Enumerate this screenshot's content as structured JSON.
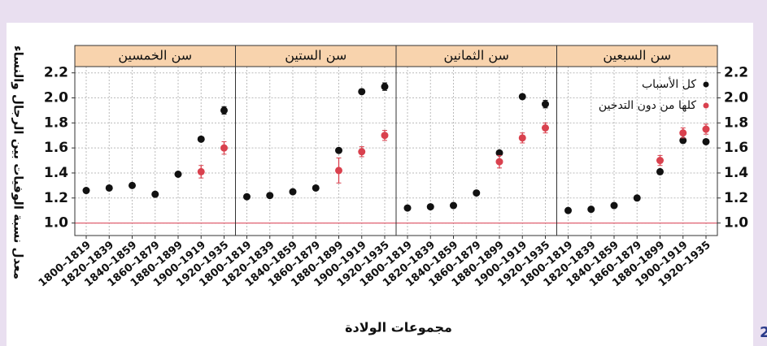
{
  "chart_data": {
    "type": "scatter",
    "ylabel": "معدل نسبة الوفيات بين الرجال والنساء",
    "xlabel": "مجموعات الولادة",
    "page_number": "2",
    "categories": [
      "1800–1819",
      "1820–1839",
      "1840–1859",
      "1860–1879",
      "1880–1899",
      "1900–1919",
      "1920–1935"
    ],
    "ylim": [
      0.9,
      2.25
    ],
    "yticks": [
      {
        "value": 1,
        "label": "1.0"
      },
      1.2,
      1.4,
      1.6,
      1.8,
      {
        "value": 2,
        "label": "2.0"
      },
      2.2
    ],
    "grid": true,
    "reference_line": 1,
    "reference_color": "#e06070",
    "legend_position": "upper right",
    "legend": [
      {
        "name": "كل الأسباب",
        "color": "#111111"
      },
      {
        "name": "كلها من دون التدخين",
        "color": "#d9414e"
      }
    ],
    "panels": [
      {
        "title": "سن الخمسين",
        "series": [
          {
            "values": [
              1.26,
              1.28,
              1.3,
              1.23,
              1.39,
              1.67,
              1.9
            ],
            "errors": [
              null,
              null,
              null,
              null,
              null,
              null,
              0.03
            ]
          },
          {
            "values": [
              null,
              null,
              null,
              null,
              null,
              1.41,
              1.6
            ],
            "errors": [
              null,
              null,
              null,
              null,
              null,
              0.05,
              0.05
            ]
          }
        ]
      },
      {
        "title": "سن الستين",
        "series": [
          {
            "values": [
              1.21,
              1.22,
              1.25,
              1.28,
              1.58,
              2.05,
              2.09
            ],
            "errors": [
              null,
              null,
              null,
              null,
              null,
              null,
              0.03
            ]
          },
          {
            "values": [
              null,
              null,
              null,
              null,
              1.42,
              1.57,
              1.7
            ],
            "errors": [
              null,
              null,
              null,
              null,
              0.1,
              0.04,
              0.04
            ]
          }
        ]
      },
      {
        "title": "سن الثمانين",
        "series": [
          {
            "values": [
              1.12,
              1.13,
              1.14,
              1.24,
              1.56,
              2.01,
              1.95
            ],
            "errors": [
              null,
              null,
              null,
              null,
              null,
              null,
              0.03
            ]
          },
          {
            "values": [
              null,
              null,
              null,
              null,
              1.49,
              1.68,
              1.76
            ],
            "errors": [
              null,
              null,
              null,
              null,
              0.05,
              0.04,
              0.04
            ]
          }
        ]
      },
      {
        "title": "سن السبعين",
        "series": [
          {
            "values": [
              1.1,
              1.11,
              1.14,
              1.2,
              1.41,
              1.66,
              1.65
            ],
            "errors": [
              null,
              null,
              null,
              null,
              null,
              null,
              null
            ]
          },
          {
            "values": [
              null,
              null,
              null,
              null,
              1.5,
              1.72,
              1.75
            ],
            "errors": [
              null,
              null,
              null,
              null,
              0.04,
              0.04,
              0.04
            ]
          }
        ]
      }
    ]
  }
}
